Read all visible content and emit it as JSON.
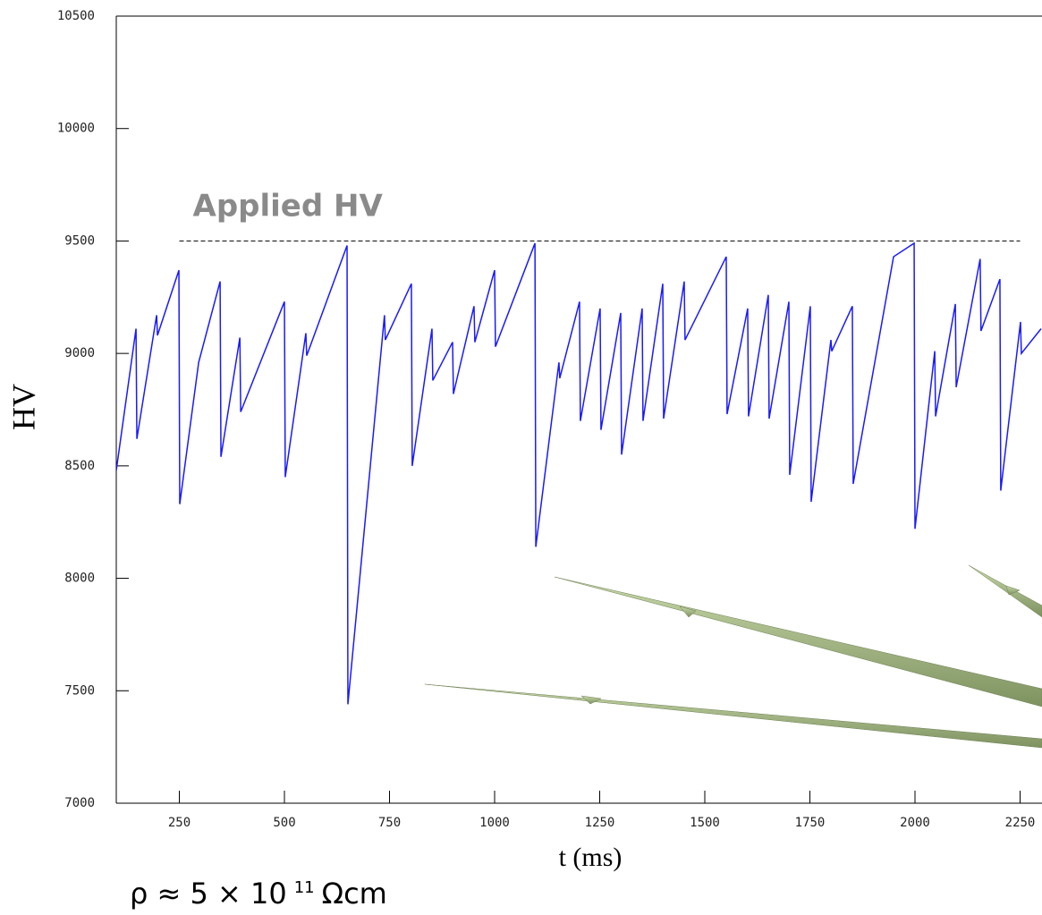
{
  "chart_data": {
    "type": "line",
    "x_label": "t (ms)",
    "y_label": "HV",
    "xlim": [
      100,
      2300
    ],
    "ylim": [
      7000,
      10500
    ],
    "xticks": [
      250,
      500,
      750,
      1000,
      1250,
      1500,
      1750,
      2000,
      2250
    ],
    "yticks": [
      7000,
      7500,
      8000,
      8500,
      9000,
      9500,
      10000,
      10500
    ],
    "series": [
      {
        "color": "#1a1aff",
        "x": [
          100,
          147,
          149,
          196,
          198,
          249,
          251,
          296,
          347,
          349,
          394,
          396,
          500,
          502,
          551,
          553,
          649,
          651,
          738,
          740,
          802,
          804,
          851,
          853,
          900,
          902,
          951,
          953,
          1000,
          1002,
          1096,
          1098,
          1153,
          1155,
          1202,
          1204,
          1251,
          1253,
          1300,
          1302,
          1351,
          1353,
          1400,
          1402,
          1451,
          1453,
          1551,
          1553,
          1602,
          1604,
          1651,
          1653,
          1700,
          1702,
          1751,
          1753,
          1800,
          1802,
          1851,
          1853,
          1949,
          1998,
          2000,
          2047,
          2049,
          2096,
          2098,
          2155,
          2157,
          2202,
          2204,
          2251,
          2253,
          2300
        ],
        "values": [
          8480,
          9110,
          8620,
          9170,
          9080,
          9370,
          8330,
          8960,
          9320,
          8540,
          9070,
          8740,
          9230,
          8450,
          9090,
          8990,
          9480,
          7440,
          9170,
          9060,
          9310,
          8500,
          9110,
          8880,
          9050,
          8820,
          9210,
          9050,
          9370,
          9030,
          9490,
          8140,
          8960,
          8890,
          9230,
          8700,
          9200,
          8660,
          9180,
          8550,
          9200,
          8700,
          9310,
          8710,
          9320,
          9060,
          9430,
          8730,
          9200,
          8720,
          9260,
          8710,
          9230,
          8460,
          9210,
          8340,
          9060,
          9010,
          9210,
          8420,
          9430,
          9490,
          8220,
          9010,
          8720,
          9220,
          8850,
          9420,
          9100,
          9330,
          8390,
          9140,
          9000,
          9110
        ]
      }
    ],
    "reference_line": {
      "label": "Applied HV",
      "value": 9500,
      "x": [
        250,
        2250
      ]
    },
    "formula": {
      "base": "ρ ≈ 5 × 10",
      "exponent": "11",
      "unit": "Ωcm"
    }
  }
}
